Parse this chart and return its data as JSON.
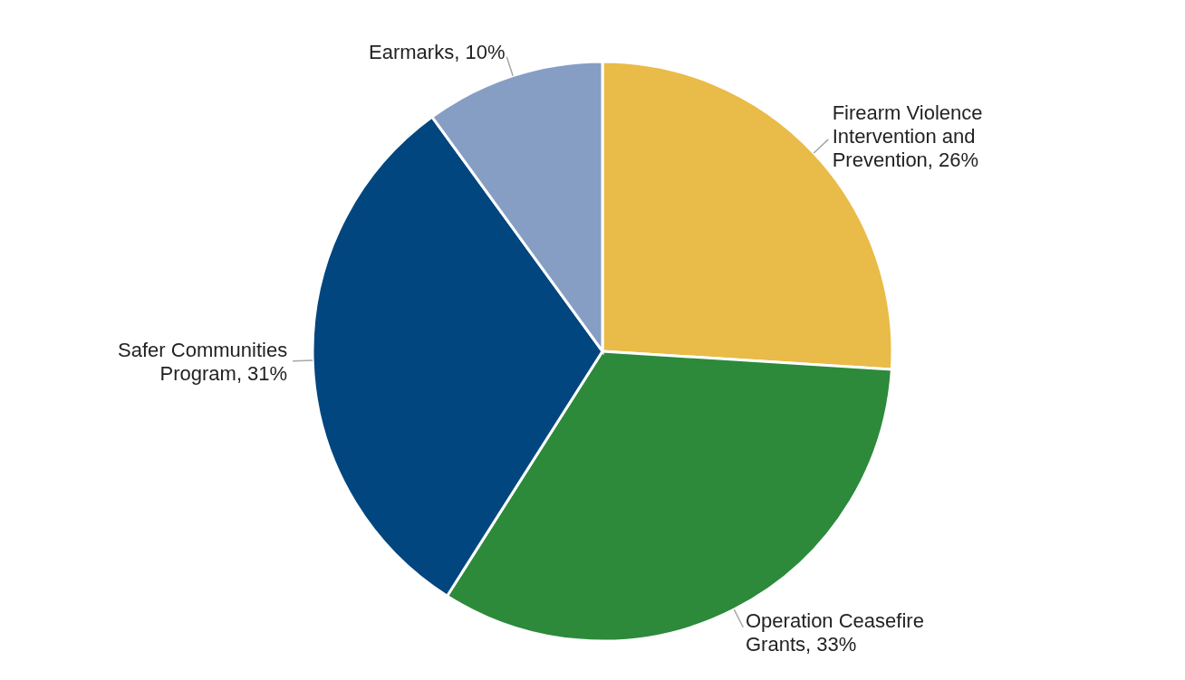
{
  "chart_data": {
    "type": "pie",
    "categories": [
      "Firearm Violence Intervention and Prevention",
      "Operation Ceasefire Grants",
      "Safer Communities Program",
      "Earmarks"
    ],
    "values": [
      26,
      33,
      31,
      10
    ],
    "value_labels": [
      "26%",
      "33%",
      "31%",
      "10%"
    ],
    "colors": [
      "#e9bb48",
      "#2c8a3a",
      "#02467f",
      "#869ec4"
    ],
    "legend": false
  }
}
